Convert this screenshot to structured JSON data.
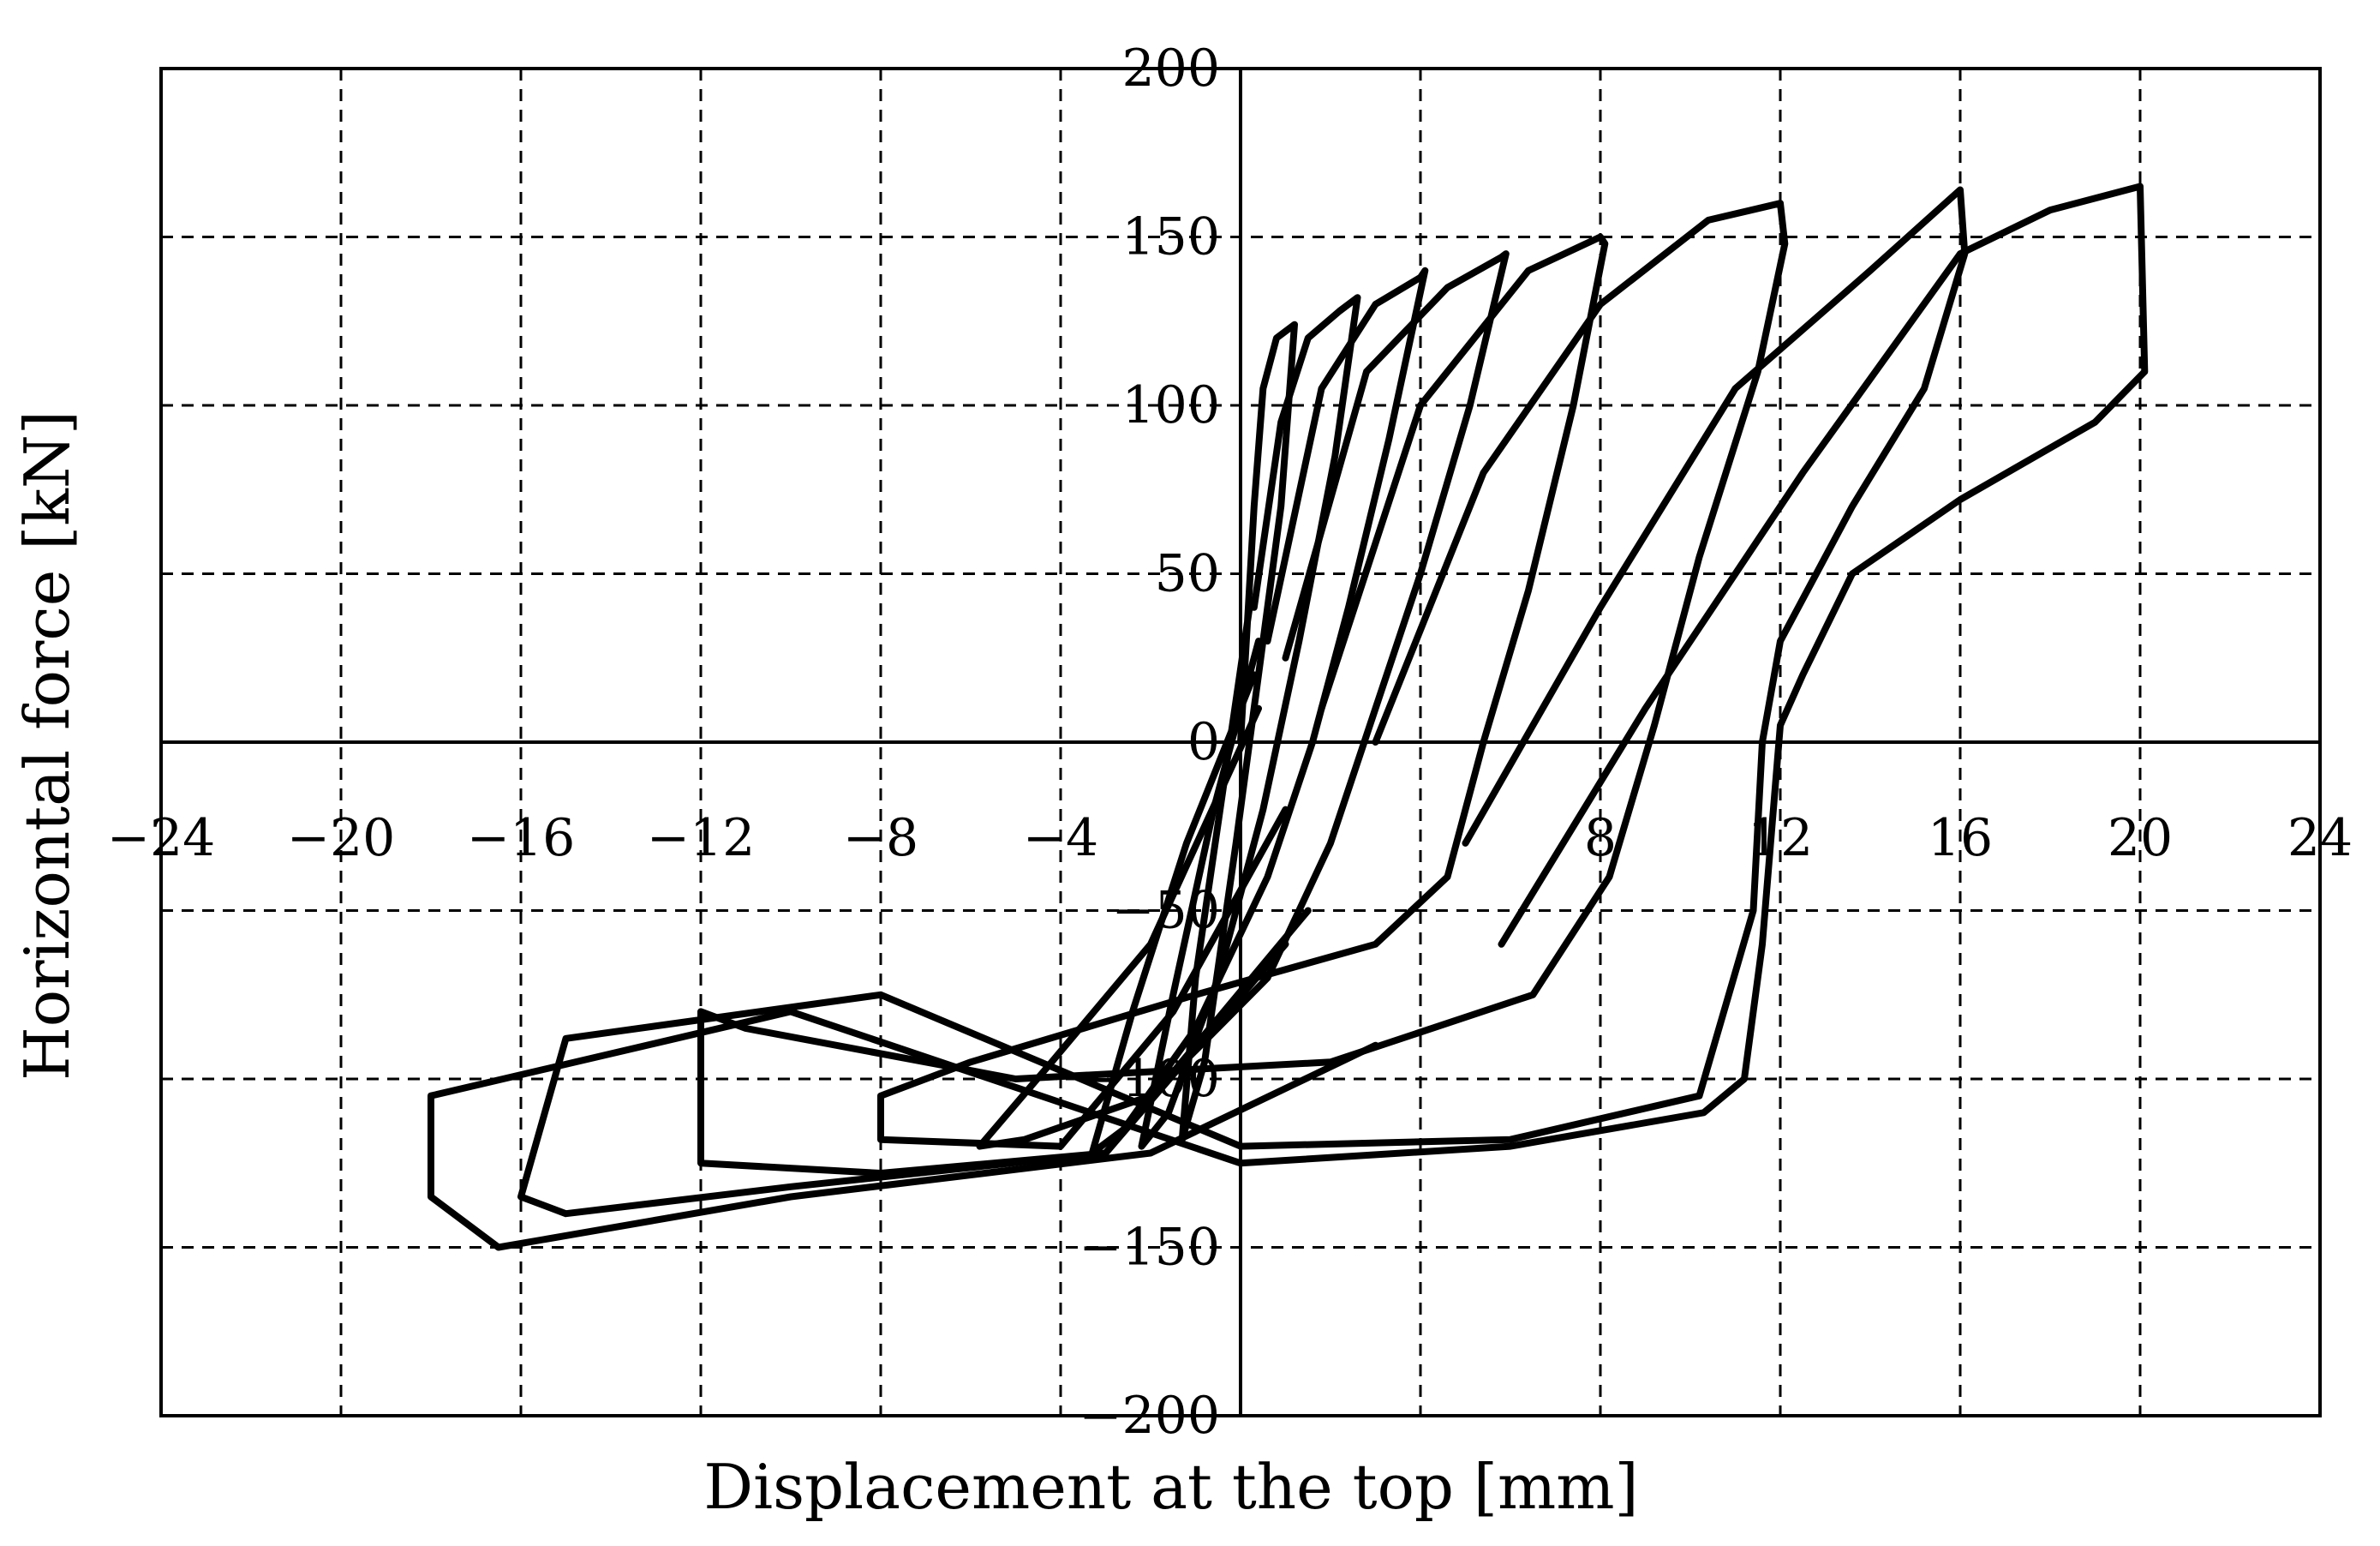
{
  "chart_data": {
    "type": "line",
    "title": "",
    "xlabel": "Displacement at the top [mm]",
    "ylabel": "Horizontal force [kN]",
    "xlim": [
      -24,
      24
    ],
    "ylim": [
      -200,
      200
    ],
    "xticks": [
      -24,
      -20,
      -16,
      -12,
      -8,
      -4,
      0,
      4,
      8,
      12,
      16,
      20,
      24
    ],
    "xtick_labels": [
      "−24",
      "−20",
      "−16",
      "−12",
      "−8",
      "−4",
      "",
      "",
      "8",
      "12",
      "16",
      "20",
      "24"
    ],
    "yticks": [
      -200,
      -150,
      -100,
      -50,
      0,
      50,
      100,
      150,
      200
    ],
    "ytick_labels": [
      "−200",
      "−150",
      "−100",
      "−50",
      "0",
      "50",
      "100",
      "150",
      "200"
    ],
    "grid": true,
    "line_color": "#000000",
    "series": [
      {
        "x": [
          0,
          0.3,
          0.5,
          0.8,
          1.2,
          0.9,
          0.4,
          -0.1,
          -0.8,
          -1.3,
          -1.0,
          -0.4,
          0.2
        ],
        "y": [
          0,
          70,
          105,
          120,
          124,
          70,
          20,
          -30,
          -95,
          -118,
          -70,
          -15,
          40
        ]
      },
      {
        "x": [
          0.3,
          0.9,
          1.5,
          2.2,
          2.6,
          2.1,
          1.3,
          0.5,
          -0.5,
          -1.6,
          -2.2,
          -1.5,
          -0.6,
          0.4
        ],
        "y": [
          40,
          95,
          120,
          128,
          132,
          85,
          30,
          -20,
          -70,
          -110,
          -120,
          -75,
          -20,
          30
        ]
      },
      {
        "x": [
          0.6,
          1.8,
          3.0,
          4.0,
          4.1,
          3.3,
          2.4,
          1.6,
          0.6,
          -1.0,
          -2.6,
          -3.3,
          -2.4,
          -1.2,
          0.3
        ],
        "y": [
          30,
          105,
          130,
          138,
          140,
          90,
          40,
          0,
          -40,
          -85,
          -115,
          -122,
          -80,
          -30,
          20
        ]
      },
      {
        "x": [
          1.0,
          2.8,
          4.6,
          5.8,
          5.9,
          5.1,
          4.0,
          3.0,
          2.0,
          0.6,
          -2.0,
          -4.8,
          -5.8,
          -4.2,
          -2.0,
          0.4
        ],
        "y": [
          25,
          110,
          135,
          144,
          145,
          100,
          50,
          10,
          -30,
          -70,
          -105,
          -118,
          -120,
          -95,
          -60,
          10
        ]
      },
      {
        "x": [
          1.8,
          4.0,
          6.4,
          8.0,
          8.1,
          7.4,
          6.4,
          5.4,
          4.6,
          3.0,
          -1.0,
          -6.0,
          -8.0,
          -8.0,
          -4.0,
          -1.5,
          1.0
        ],
        "y": [
          10,
          100,
          140,
          150,
          148,
          100,
          45,
          0,
          -40,
          -60,
          -75,
          -95,
          -105,
          -118,
          -120,
          -80,
          -20
        ]
      },
      {
        "x": [
          3.0,
          5.4,
          8.0,
          10.4,
          12.0,
          12.1,
          11.5,
          10.2,
          9.2,
          8.2,
          6.5,
          2.0,
          -5.0,
          -11.0,
          -12.0,
          -12.0,
          -8.0,
          -3.0,
          1.0
        ],
        "y": [
          0,
          80,
          130,
          155,
          160,
          148,
          110,
          55,
          5,
          -40,
          -75,
          -95,
          -100,
          -85,
          -80,
          -125,
          -128,
          -122,
          -60
        ]
      },
      {
        "x": [
          5.0,
          8.0,
          11.0,
          14.0,
          16.0,
          16.1,
          15.2,
          13.6,
          12.0,
          11.6,
          11.4,
          10.2,
          6.0,
          0.0,
          -8.0,
          -15.0,
          -16.0,
          -15.0,
          -10.0,
          -3.0,
          1.5
        ],
        "y": [
          -30,
          40,
          105,
          140,
          164,
          145,
          105,
          70,
          30,
          0,
          -50,
          -105,
          -118,
          -120,
          -75,
          -88,
          -135,
          -140,
          -132,
          -122,
          -50
        ]
      },
      {
        "x": [
          5.8,
          9.0,
          12.5,
          16.0,
          18.0,
          20.0,
          20.1,
          19.0,
          16.0,
          13.6,
          12.5,
          12.0,
          11.6,
          11.2,
          10.3,
          6.0,
          0.0,
          -10.0,
          -18.0,
          -18.0,
          -16.5,
          -10.0,
          -2.0,
          3.0
        ],
        "y": [
          -60,
          10,
          80,
          145,
          158,
          165,
          110,
          95,
          72,
          50,
          20,
          5,
          -60,
          -100,
          -110,
          -120,
          -125,
          -80,
          -105,
          -135,
          -150,
          -135,
          -122,
          -90
        ]
      }
    ]
  }
}
